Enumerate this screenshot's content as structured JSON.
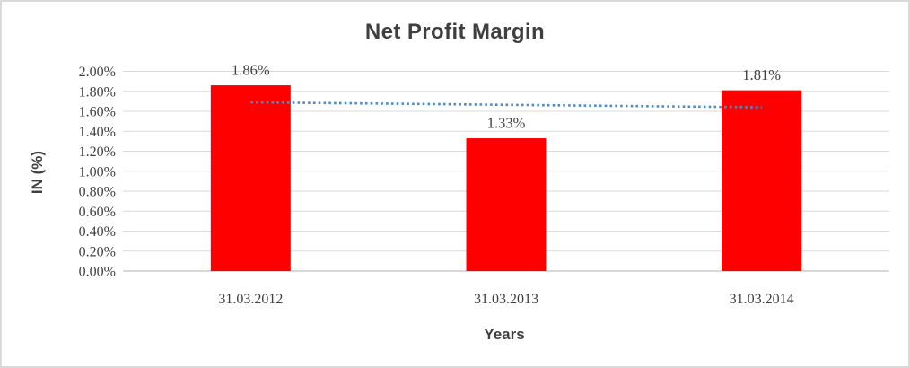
{
  "frame": {
    "background_color": "#ffffff",
    "border_color": "#d9d9d9"
  },
  "chart_data": {
    "type": "bar",
    "title": "Net Profit Margin",
    "xlabel": "Years",
    "ylabel": "IN (%)",
    "categories": [
      "31.03.2012",
      "31.03.2013",
      "31.03.2014"
    ],
    "series": [
      {
        "name": "Net Profit Margin",
        "color": "#ff0000",
        "values": [
          1.86,
          1.33,
          1.81
        ]
      }
    ],
    "data_labels": [
      "1.86%",
      "1.33%",
      "1.81%"
    ],
    "trendline": {
      "type": "linear",
      "style": "dotted",
      "color": "#4a8bc8",
      "start_value": 1.69,
      "end_value": 1.64
    },
    "ylim": [
      0.0,
      2.0
    ],
    "yticks": [
      {
        "value": 2.0,
        "label": "2.00%"
      },
      {
        "value": 1.8,
        "label": "1.80%"
      },
      {
        "value": 1.6,
        "label": "1.60%"
      },
      {
        "value": 1.4,
        "label": "1.40%"
      },
      {
        "value": 1.2,
        "label": "1.20%"
      },
      {
        "value": 1.0,
        "label": "1.00%"
      },
      {
        "value": 0.8,
        "label": "0.80%"
      },
      {
        "value": 0.6,
        "label": "0.60%"
      },
      {
        "value": 0.4,
        "label": "0.40%"
      },
      {
        "value": 0.2,
        "label": "0.20%"
      },
      {
        "value": 0.0,
        "label": "0.00%"
      }
    ],
    "grid": true,
    "gridline_color": "#d9d9d9",
    "axis_line_color": "#c0c0c0",
    "text_color": "#404040",
    "legend": "none"
  }
}
